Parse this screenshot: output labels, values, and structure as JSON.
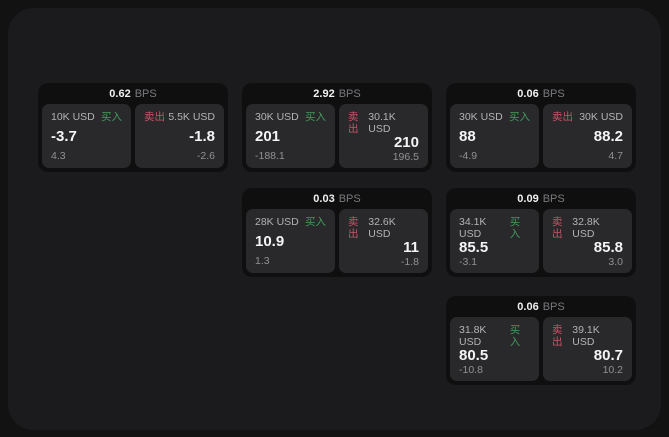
{
  "labels": {
    "unit": "BPS",
    "buy": "买入",
    "sell": "卖出"
  },
  "colors": {
    "background": "#121213",
    "surface": "#1b1b1d",
    "card": "#0f0f10",
    "tile": "#29292b",
    "buy_accent": "#45995c",
    "sell_accent": "#c75467",
    "value_text": "#f4f4f5",
    "muted_text": "#919194"
  },
  "cards": [
    {
      "spread": "0.62",
      "buy": {
        "size": "10K USD",
        "price": "-3.7",
        "delta": "4.3"
      },
      "sell": {
        "size": "5.5K USD",
        "price": "-1.8",
        "delta": "-2.6"
      }
    },
    {
      "spread": "2.92",
      "buy": {
        "size": "30K USD",
        "price": "201",
        "delta": "-188.1"
      },
      "sell": {
        "size": "30.1K USD",
        "price": "210",
        "delta": "196.5"
      }
    },
    {
      "spread": "0.06",
      "buy": {
        "size": "30K USD",
        "price": "88",
        "delta": "-4.9"
      },
      "sell": {
        "size": "30K USD",
        "price": "88.2",
        "delta": "4.7"
      }
    },
    {
      "spread": "0.03",
      "buy": {
        "size": "28K USD",
        "price": "10.9",
        "delta": "1.3"
      },
      "sell": {
        "size": "32.6K USD",
        "price": "11",
        "delta": "-1.8"
      }
    },
    {
      "spread": "0.09",
      "buy": {
        "size": "34.1K USD",
        "price": "85.5",
        "delta": "-3.1"
      },
      "sell": {
        "size": "32.8K USD",
        "price": "85.8",
        "delta": "3.0"
      }
    },
    {
      "spread": "0.06",
      "buy": {
        "size": "31.8K USD",
        "price": "80.5",
        "delta": "-10.8"
      },
      "sell": {
        "size": "39.1K USD",
        "price": "80.7",
        "delta": "10.2"
      }
    }
  ]
}
